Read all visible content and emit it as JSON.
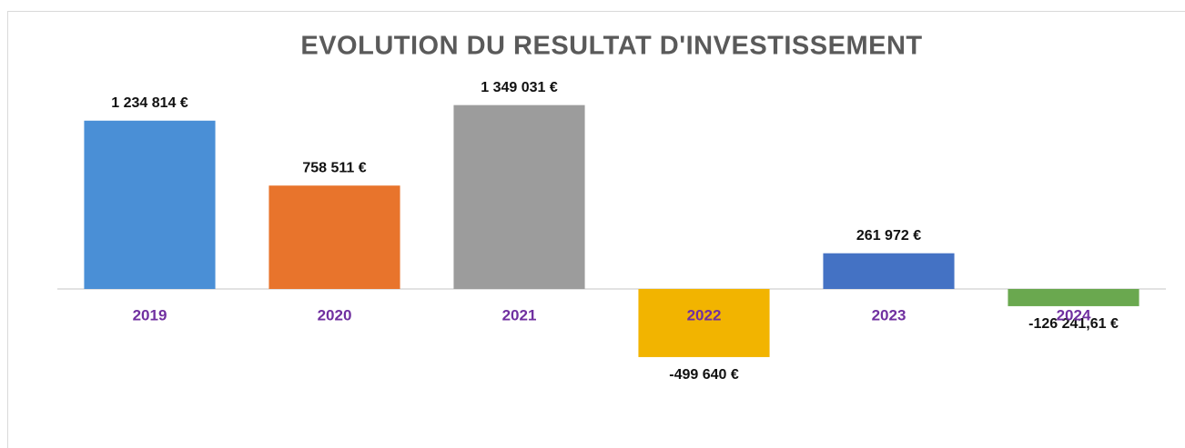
{
  "chart_data": {
    "type": "bar",
    "title": "EVOLUTION DU RESULTAT D'INVESTISSEMENT",
    "categories": [
      "2019",
      "2020",
      "2021",
      "2022",
      "2023",
      "2024"
    ],
    "values": [
      1234814,
      758511,
      1349031,
      -499640,
      261972,
      -126241.61
    ],
    "value_labels": [
      "1 234 814 €",
      "758 511 €",
      "1 349 031 €",
      "-499 640 €",
      "261 972 €",
      "-126 241,61 €"
    ],
    "colors": [
      "#4a8fd6",
      "#e8742c",
      "#9c9c9c",
      "#f2b400",
      "#4472c4",
      "#6aa84f"
    ],
    "ylim": [
      -1100000,
      1600000
    ]
  }
}
